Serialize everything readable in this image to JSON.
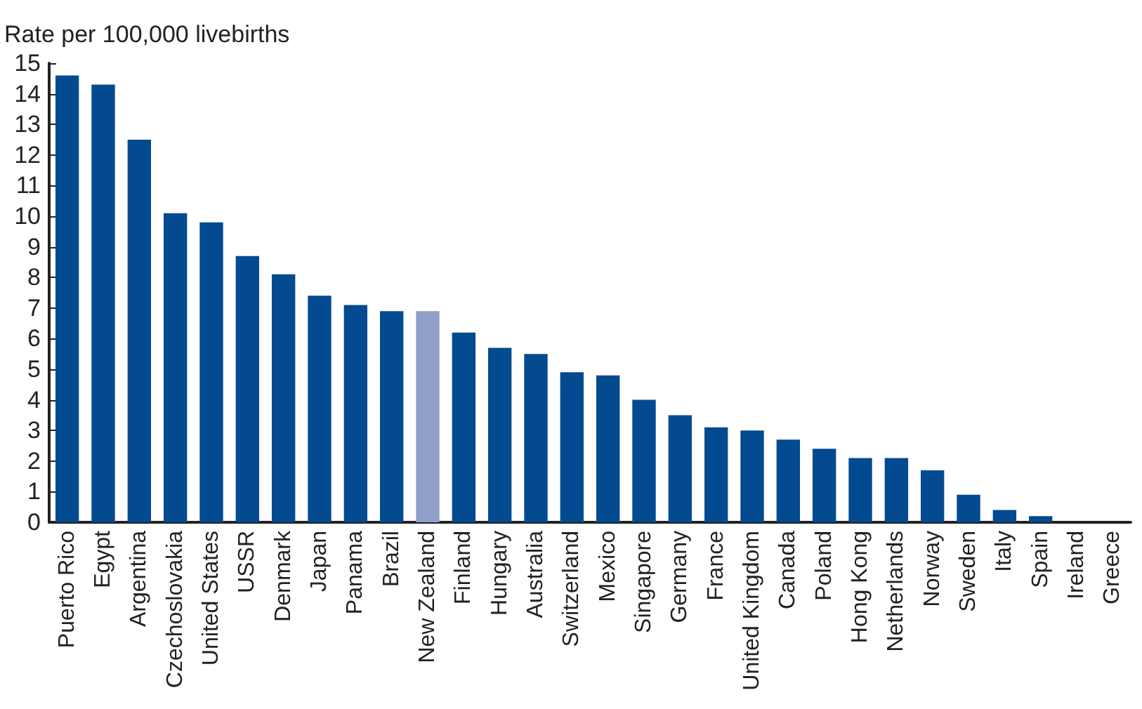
{
  "chart_data": {
    "type": "bar",
    "ylabel": "Rate per 100,000 livebirths",
    "categories": [
      "Puerto Rico",
      "Egypt",
      "Argentina",
      "Czechoslovakia",
      "United States",
      "USSR",
      "Denmark",
      "Japan",
      "Panama",
      "Brazil",
      "New Zealand",
      "Finland",
      "Hungary",
      "Australia",
      "Switzerland",
      "Mexico",
      "Singapore",
      "Germany",
      "France",
      "United Kingdom",
      "Canada",
      "Poland",
      "Hong Kong",
      "Netherlands",
      "Norway",
      "Sweden",
      "Italy",
      "Spain",
      "Ireland",
      "Greece"
    ],
    "values": [
      14.6,
      14.3,
      12.5,
      10.1,
      9.8,
      8.7,
      8.1,
      7.4,
      7.1,
      6.9,
      6.9,
      6.2,
      5.7,
      5.5,
      4.9,
      4.8,
      4.0,
      3.5,
      3.1,
      3.0,
      2.7,
      2.4,
      2.1,
      2.1,
      1.7,
      0.9,
      0.4,
      0.2,
      0,
      0
    ],
    "colors": [
      "#034a90",
      "#034a90",
      "#034a90",
      "#034a90",
      "#034a90",
      "#034a90",
      "#034a90",
      "#034a90",
      "#034a90",
      "#034a90",
      "#8fa0c8",
      "#034a90",
      "#034a90",
      "#034a90",
      "#034a90",
      "#034a90",
      "#034a90",
      "#034a90",
      "#034a90",
      "#034a90",
      "#034a90",
      "#034a90",
      "#034a90",
      "#034a90",
      "#034a90",
      "#034a90",
      "#034a90",
      "#034a90",
      "#034a90",
      "#034a90"
    ],
    "ylim": [
      0,
      15
    ],
    "yticks": [
      0,
      1,
      2,
      3,
      4,
      5,
      6,
      7,
      8,
      9,
      10,
      11,
      12,
      13,
      14,
      15
    ],
    "grid": false
  }
}
